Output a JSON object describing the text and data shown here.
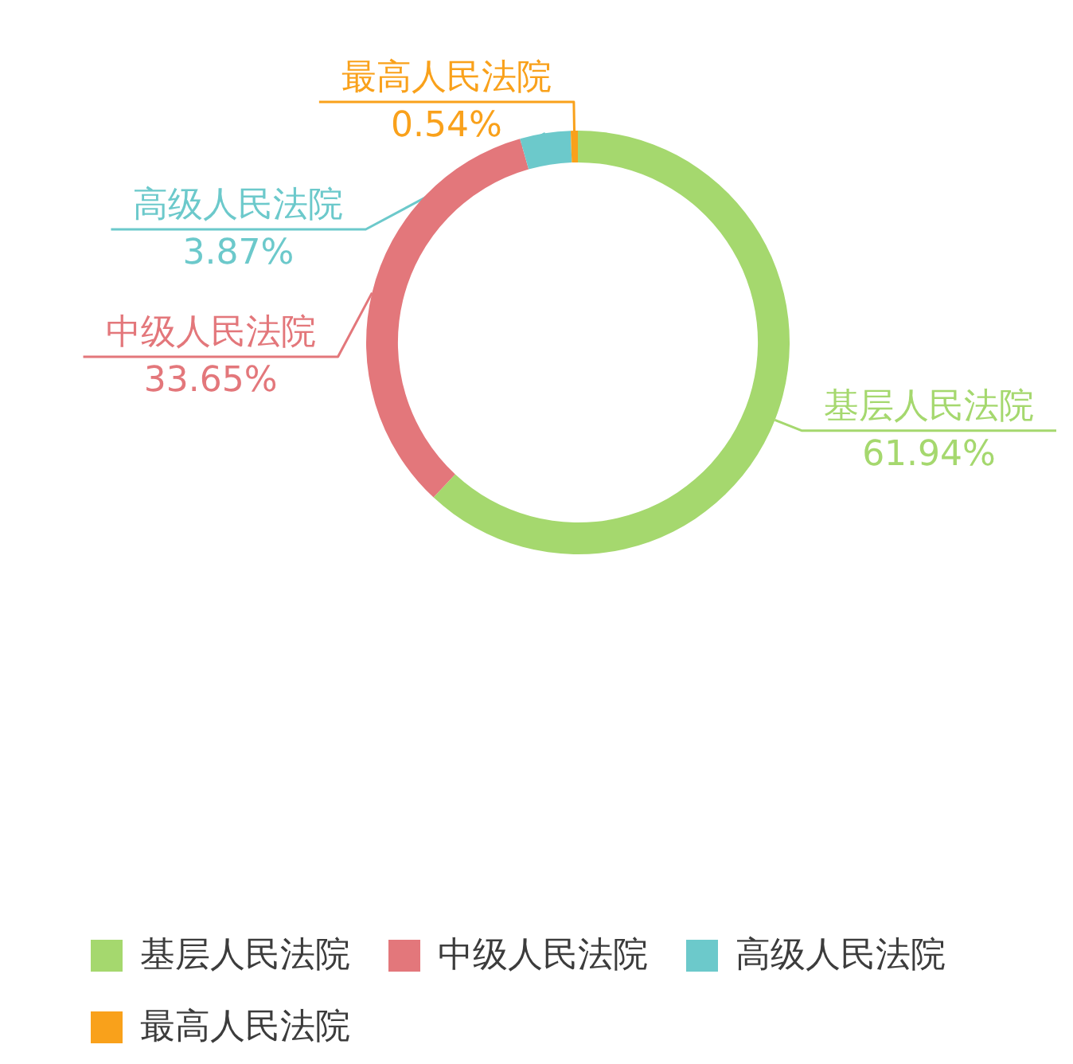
{
  "chart_data": {
    "type": "donut",
    "categories": [
      "基层人民法院",
      "中级人民法院",
      "高级人民法院",
      "最高人民法院"
    ],
    "values": [
      61.94,
      33.65,
      3.87,
      0.54
    ],
    "colors": [
      "#a5d86e",
      "#e3777b",
      "#6cc9cb",
      "#f9a11b"
    ],
    "value_labels": [
      "61.94%",
      "33.65%",
      "3.87%",
      "0.54%"
    ],
    "legend": "bottom left"
  }
}
